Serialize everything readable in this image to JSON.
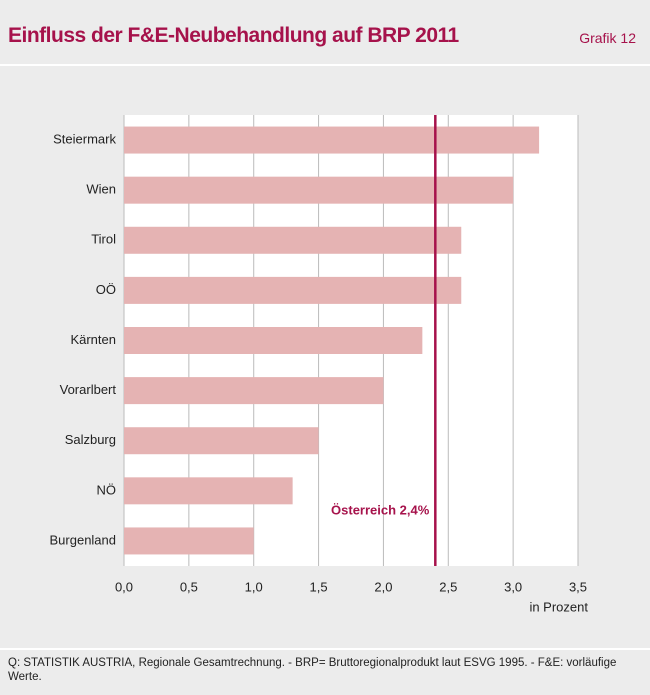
{
  "chart_data": {
    "type": "barh",
    "title": "Einfluss der F&E-Neubehandlung auf BRP 2011",
    "figure_label": "Grafik 12",
    "categories": [
      "Steiermark",
      "Wien",
      "Tirol",
      "OÖ",
      "Kärnten",
      "Vorarlbert",
      "Salzburg",
      "NÖ",
      "Burgenland"
    ],
    "values": [
      3.2,
      3.0,
      2.6,
      2.6,
      2.3,
      2.0,
      1.5,
      1.3,
      1.0
    ],
    "color": "#e5b3b3",
    "xlim": [
      0,
      3.5
    ],
    "xticks": [
      {
        "value": 0,
        "label": "0,0"
      },
      {
        "value": 0.5,
        "label": "0,5"
      },
      {
        "value": 1,
        "label": "1,0"
      },
      {
        "value": 1.5,
        "label": "1,5"
      },
      {
        "value": 2,
        "label": "2,0"
      },
      {
        "value": 2.5,
        "label": "2,5"
      },
      {
        "value": 3,
        "label": "3,0"
      },
      {
        "value": 3.5,
        "label": "3,5"
      }
    ],
    "xlabel": "in Prozent",
    "grid": true,
    "reference": {
      "value": 2.4,
      "label": "Österreich 2,4%",
      "color": "#a6124b"
    },
    "note": "Q: STATISTIK AUSTRIA, Regionale Gesamtrechnung. - BRP= Bruttoregionalprodukt laut ESVG 1995. - F&E: vorläufige Werte."
  }
}
